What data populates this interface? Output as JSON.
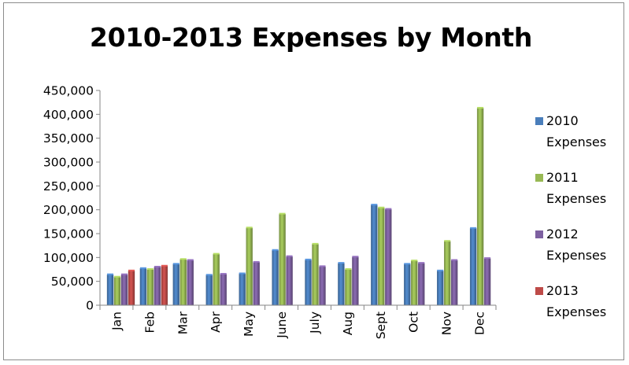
{
  "chart_data": {
    "type": "bar",
    "title": "2010-2013 Expenses by Month",
    "xlabel": "",
    "ylabel": "",
    "categories": [
      "Jan",
      "Feb",
      "Mar",
      "Apr",
      "May",
      "June",
      "July",
      "Aug",
      "Sept",
      "Oct",
      "Nov",
      "Dec"
    ],
    "ylim": [
      0,
      450000
    ],
    "yticks": [
      0,
      50000,
      100000,
      150000,
      200000,
      250000,
      300000,
      350000,
      400000,
      450000
    ],
    "ytick_labels": [
      "0",
      "50,000",
      "100,000",
      "150,000",
      "200,000",
      "250,000",
      "300,000",
      "350,000",
      "400,000",
      "450,000"
    ],
    "grid": false,
    "legend_position": "right",
    "series": [
      {
        "name": "2010 Expenses",
        "color": "#4a7ebb",
        "values": [
          64000,
          77000,
          86000,
          63000,
          66000,
          115000,
          95000,
          88000,
          210000,
          86000,
          72000,
          161000
        ]
      },
      {
        "name": "2011 Expenses",
        "color": "#98b954",
        "values": [
          59000,
          75000,
          96000,
          107000,
          162000,
          191000,
          128000,
          75000,
          204000,
          93000,
          134000,
          413000
        ]
      },
      {
        "name": "2012 Expenses",
        "color": "#7d60a0",
        "values": [
          64000,
          80000,
          94000,
          65000,
          90000,
          102000,
          81000,
          101000,
          201000,
          88000,
          94000,
          98000
        ]
      },
      {
        "name": "2013 Expenses",
        "color": "#be4b48",
        "values": [
          72000,
          82000,
          null,
          null,
          null,
          null,
          null,
          null,
          null,
          null,
          null,
          null
        ]
      }
    ]
  },
  "legend": {
    "items": [
      {
        "line1": "2010",
        "line2": "Expenses",
        "color": "#4a7ebb"
      },
      {
        "line1": "2011",
        "line2": "Expenses",
        "color": "#98b954"
      },
      {
        "line1": "2012",
        "line2": "Expenses",
        "color": "#7d60a0"
      },
      {
        "line1": "2013",
        "line2": "Expenses",
        "color": "#be4b48"
      }
    ]
  }
}
